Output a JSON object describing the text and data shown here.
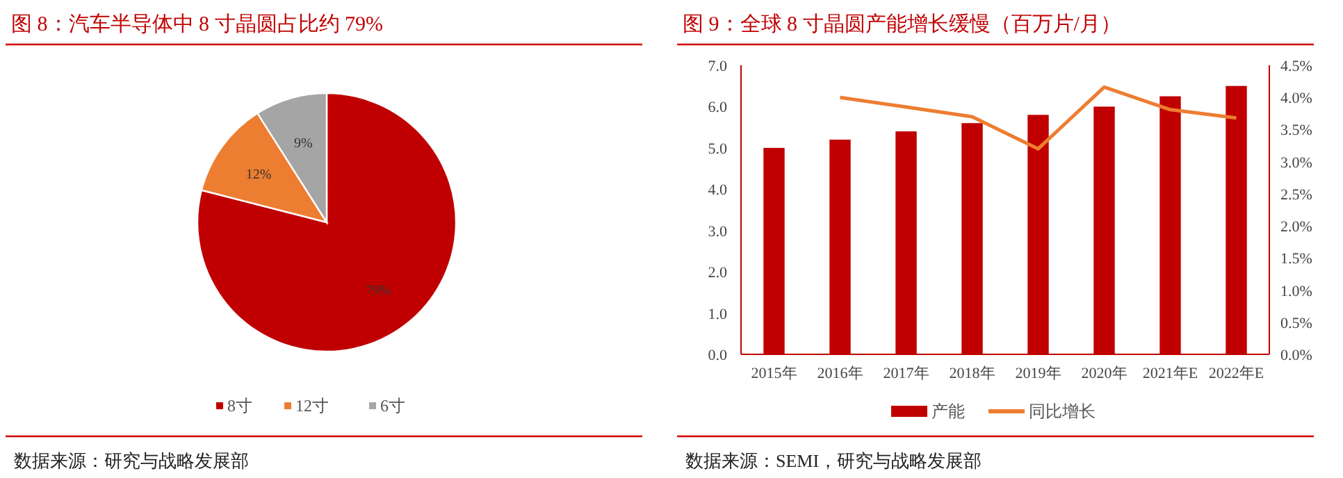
{
  "chart_data": [
    {
      "type": "pie",
      "title": "图 8：汽车半导体中 8 寸晶圆占比约 79%",
      "categories": [
        "8寸",
        "12寸",
        "6寸"
      ],
      "values": [
        79,
        12,
        9
      ],
      "colors": [
        "#c00000",
        "#ed7d31",
        "#a5a5a5"
      ],
      "value_labels": [
        "79%",
        "12%",
        "9%"
      ],
      "legend": "bottom",
      "annotations": [
        "数据来源：研究与战略发展部"
      ]
    },
    {
      "type": "bar",
      "title": "图 9：全球 8 寸晶圆产能增长缓慢（百万片/月）",
      "categories": [
        "2015年",
        "2016年",
        "2017年",
        "2018年",
        "2019年",
        "2020年",
        "2021年E",
        "2022年E"
      ],
      "series": [
        {
          "name": "产能",
          "color": "#c00000",
          "values": [
            5.0,
            5.2,
            5.4,
            5.6,
            5.8,
            6.0,
            6.25,
            6.5
          ]
        },
        {
          "name": "同比增长",
          "type": "line",
          "axis": "y2",
          "color": "#ed7d31",
          "values": [
            null,
            4.0,
            3.85,
            3.7,
            3.2,
            4.16,
            3.81,
            3.68
          ]
        }
      ],
      "ylim": [
        0,
        7
      ],
      "yticks": [
        {
          "value": 0,
          "label": "0.0"
        },
        {
          "value": 1,
          "label": "1.0"
        },
        {
          "value": 2,
          "label": "2.0"
        },
        {
          "value": 3,
          "label": "3.0"
        },
        {
          "value": 4,
          "label": "4.0"
        },
        {
          "value": 5,
          "label": "5.0"
        },
        {
          "value": 6,
          "label": "6.0"
        },
        {
          "value": 7,
          "label": "7.0"
        }
      ],
      "y2lim": [
        0,
        4.5
      ],
      "y2ticks": [
        {
          "value": 0,
          "label": "0.0%"
        },
        {
          "value": 0.5,
          "label": "0.5%"
        },
        {
          "value": 1,
          "label": "1.0%"
        },
        {
          "value": 1.5,
          "label": "1.5%"
        },
        {
          "value": 2,
          "label": "2.0%"
        },
        {
          "value": 2.5,
          "label": "2.5%"
        },
        {
          "value": 3,
          "label": "3.0%"
        },
        {
          "value": 3.5,
          "label": "3.5%"
        },
        {
          "value": 4,
          "label": "4.0%"
        },
        {
          "value": 4.5,
          "label": "4.5%"
        }
      ],
      "legend": "bottom",
      "grid": false,
      "annotations": [
        "数据来源：SEMI，研究与战略发展部"
      ]
    }
  ]
}
